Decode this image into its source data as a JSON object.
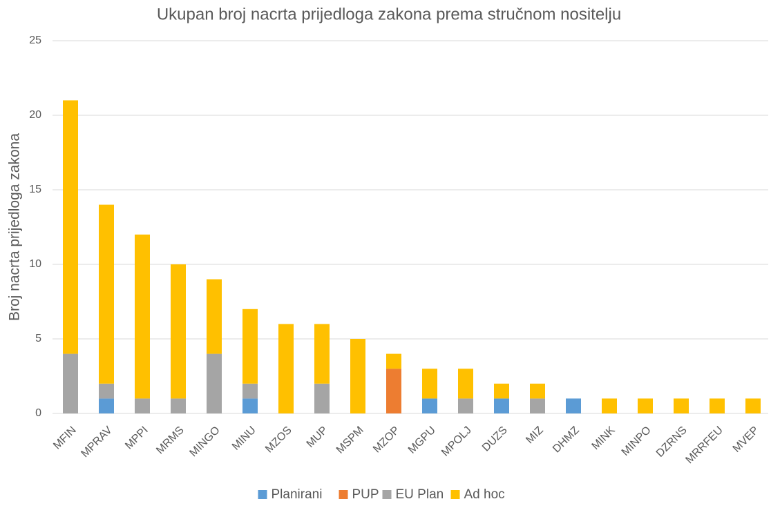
{
  "chart_data": {
    "type": "stacked_bar",
    "title": "Ukupan broj nacrta prijedloga zakona prema stručnom nositelju",
    "y_label": "Broj nacrta prijedloga zakona",
    "categories": [
      "MFIN",
      "MPRAV",
      "MPPI",
      "MRMS",
      "MINGO",
      "MINU",
      "MZOS",
      "MUP",
      "MSPM",
      "MZOP",
      "MGPU",
      "MPOLJ",
      "DUZS",
      "MIZ",
      "DHMZ",
      "MINK",
      "MINPO",
      "DZRNS",
      "MRRFEU",
      "MVEP"
    ],
    "series": [
      {
        "name": "Planirani",
        "color": "#5b9bd5",
        "values": [
          0,
          1,
          0,
          0,
          0,
          1,
          0,
          0,
          0,
          0,
          1,
          0,
          1,
          0,
          1,
          0,
          0,
          0,
          0,
          0
        ]
      },
      {
        "name": "PUP",
        "color": "#ed7d31",
        "values": [
          0,
          0,
          0,
          0,
          0,
          0,
          0,
          0,
          0,
          3,
          0,
          0,
          0,
          0,
          0,
          0,
          0,
          0,
          0,
          0
        ]
      },
      {
        "name": "EU Plan",
        "color": "#a5a5a5",
        "values": [
          4,
          1,
          1,
          1,
          4,
          1,
          0,
          2,
          0,
          0,
          0,
          1,
          0,
          1,
          0,
          0,
          0,
          0,
          0,
          0
        ]
      },
      {
        "name": "Ad hoc",
        "color": "#ffc000",
        "values": [
          17,
          12,
          11,
          9,
          5,
          5,
          6,
          4,
          5,
          1,
          2,
          2,
          1,
          1,
          0,
          1,
          1,
          1,
          1,
          1
        ]
      }
    ],
    "ylim": [
      0,
      25
    ],
    "yticks": [
      0,
      5,
      10,
      15,
      20,
      25
    ],
    "grid": true,
    "legend": "bottom"
  }
}
